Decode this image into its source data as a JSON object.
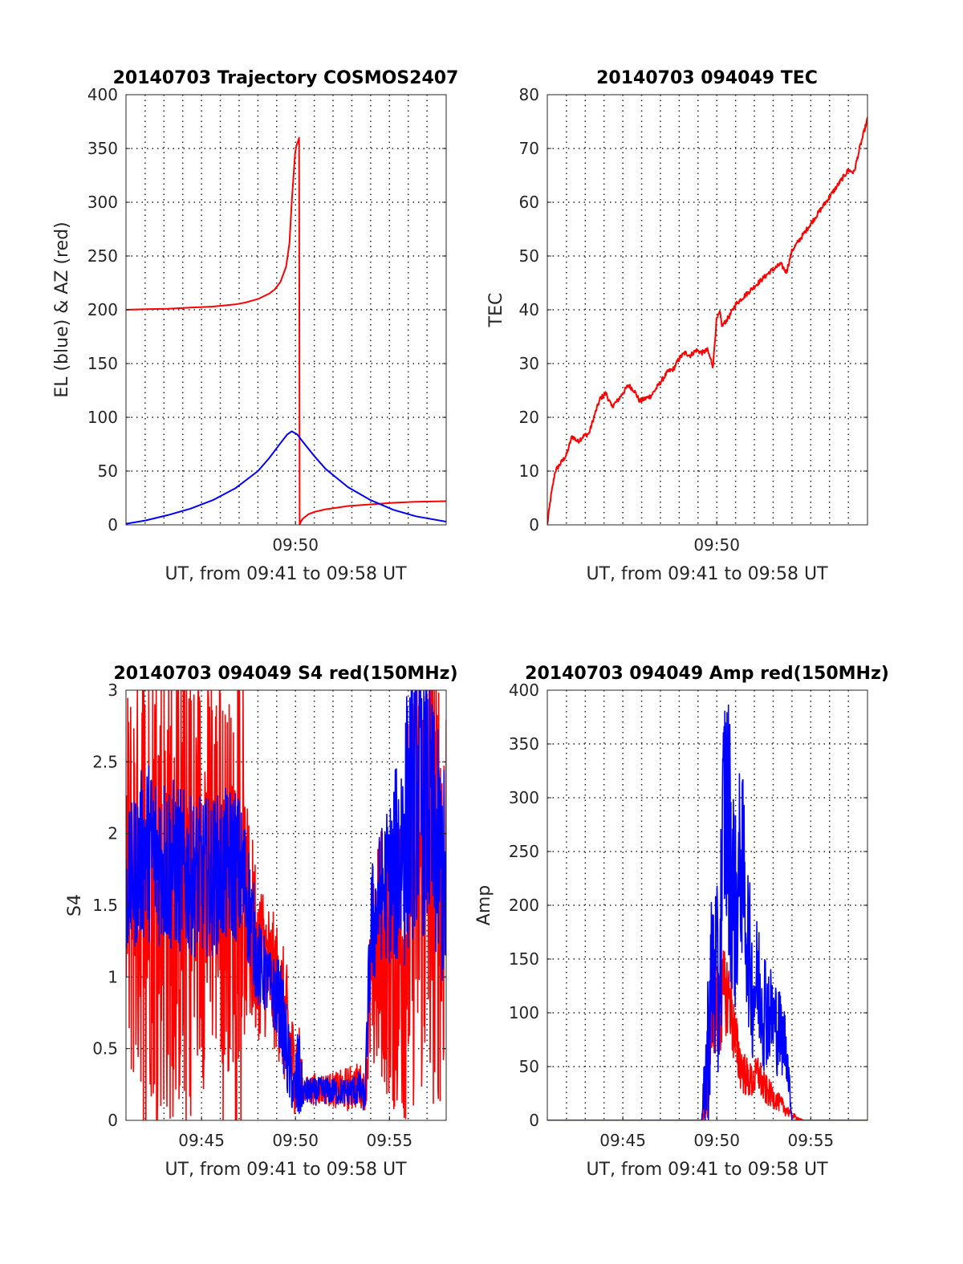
{
  "chart_data": [
    {
      "type": "line",
      "title": "20140703 Trajectory COSMOS2407",
      "xlabel": "UT, from 09:41 to 09:58 UT",
      "ylabel": "EL (blue) & AZ (red)",
      "xlim": [
        9.683,
        9.967
      ],
      "ylim": [
        0,
        400
      ],
      "yticks": [
        0,
        50,
        100,
        150,
        200,
        250,
        300,
        350,
        400
      ],
      "xtick_labels": [
        {
          "t": 9.8333,
          "label": "09:50"
        }
      ],
      "grid": true,
      "series": [
        {
          "color": "#ff0000",
          "curve": "az",
          "x": [
            9.683,
            9.7,
            9.72,
            9.74,
            9.76,
            9.78,
            9.79,
            9.8,
            9.81,
            9.815,
            9.82,
            9.825,
            9.828,
            9.83,
            9.832,
            9.833,
            9.834,
            9.835,
            9.836,
            9.8365,
            9.837,
            9.838,
            9.84,
            9.845,
            9.85,
            9.86,
            9.87,
            9.88,
            9.9,
            9.92,
            9.94,
            9.967
          ],
          "y": [
            200,
            200.5,
            201,
            202,
            203,
            205,
            207,
            210,
            215,
            219,
            226,
            240,
            262,
            300,
            330,
            345,
            352,
            355,
            358,
            360,
            0,
            3,
            6,
            10,
            12,
            14.5,
            16,
            17.5,
            19,
            20.5,
            21.5,
            22
          ]
        },
        {
          "color": "#0000ff",
          "curve": "el",
          "x": [
            9.683,
            9.7,
            9.72,
            9.74,
            9.76,
            9.78,
            9.8,
            9.81,
            9.82,
            9.826,
            9.83,
            9.835,
            9.84,
            9.85,
            9.86,
            9.88,
            9.9,
            9.92,
            9.94,
            9.967
          ],
          "y": [
            1,
            4,
            9,
            15,
            23,
            34,
            50,
            62,
            76,
            84,
            87,
            84,
            77,
            64,
            52,
            35,
            23,
            14,
            8,
            3
          ]
        }
      ]
    },
    {
      "type": "line",
      "title": "20140703 094049 TEC",
      "xlabel": "UT, from 09:41 to 09:58 UT",
      "ylabel": "TEC",
      "xlim": [
        9.683,
        9.967
      ],
      "ylim": [
        0,
        80
      ],
      "yticks": [
        0,
        10,
        20,
        30,
        40,
        50,
        60,
        70,
        80
      ],
      "xtick_labels": [
        {
          "t": 9.8333,
          "label": "09:50"
        }
      ],
      "grid": true,
      "series": [
        {
          "color": "#ff0000",
          "curve": "tec",
          "x": [
            9.683,
            9.686,
            9.69,
            9.695,
            9.7,
            9.705,
            9.71,
            9.715,
            9.72,
            9.725,
            9.73,
            9.735,
            9.74,
            9.745,
            9.75,
            9.755,
            9.76,
            9.765,
            9.77,
            9.775,
            9.78,
            9.785,
            9.79,
            9.795,
            9.8,
            9.805,
            9.81,
            9.815,
            9.82,
            9.825,
            9.83,
            9.833,
            9.836,
            9.838,
            9.84,
            9.845,
            9.85,
            9.86,
            9.87,
            9.88,
            9.89,
            9.895,
            9.897,
            9.9,
            9.91,
            9.92,
            9.93,
            9.94,
            9.945,
            9.95,
            9.955,
            9.96,
            9.967
          ],
          "y": [
            0,
            5,
            10,
            11.5,
            13,
            16.5,
            15.5,
            16.5,
            17,
            20.5,
            23.5,
            24.5,
            22,
            23,
            24.5,
            26,
            25,
            23,
            23.5,
            24,
            25.5,
            27,
            28.5,
            29,
            31,
            32,
            31.5,
            32.5,
            32,
            32.5,
            29.5,
            38,
            39.5,
            37,
            37.5,
            39,
            41,
            43,
            45,
            47,
            48.5,
            47,
            48.5,
            51,
            54,
            57,
            60,
            63,
            64.5,
            66,
            65.5,
            70,
            75.5
          ]
        }
      ]
    },
    {
      "type": "line",
      "title": "20140703 094049 S4 red(150MHz)",
      "xlabel": "UT, from 09:41 to 09:58 UT",
      "ylabel": "S4",
      "xlim": [
        9.683,
        9.967
      ],
      "ylim": [
        0,
        3
      ],
      "yticks": [
        0,
        0.5,
        1,
        1.5,
        2,
        2.5,
        3
      ],
      "xtick_labels": [
        {
          "t": 9.75,
          "label": "09:45"
        },
        {
          "t": 9.8333,
          "label": "09:50"
        },
        {
          "t": 9.9167,
          "label": "09:55"
        }
      ],
      "grid": true,
      "series": [
        {
          "color": "#ff0000",
          "curve": "s4red",
          "x": [
            9.683,
            9.7,
            9.72,
            9.74,
            9.76,
            9.78,
            9.79,
            9.8,
            9.81,
            9.82,
            9.827,
            9.832,
            9.836,
            9.84,
            9.85,
            9.86,
            9.87,
            9.88,
            9.89,
            9.895,
            9.9,
            9.91,
            9.92,
            9.93,
            9.94,
            9.95,
            9.967
          ],
          "y": [
            1.6,
            1.8,
            1.7,
            1.6,
            1.8,
            1.6,
            1.4,
            1.2,
            1.05,
            0.85,
            0.55,
            0.35,
            0.45,
            0.2,
            0.22,
            0.22,
            0.21,
            0.22,
            0.25,
            0.2,
            0.9,
            1.2,
            1.0,
            1.3,
            1.7,
            1.8,
            1.7
          ],
          "amp": [
            0.9,
            1.0,
            1.1,
            1.0,
            0.9,
            0.8,
            0.5,
            0.4,
            0.3,
            0.3,
            0.3,
            0.2,
            0.2,
            0.06,
            0.07,
            0.07,
            0.08,
            0.1,
            0.1,
            0.08,
            0.4,
            0.6,
            0.6,
            0.9,
            1.0,
            1.1,
            1.0
          ]
        },
        {
          "color": "#0000ff",
          "curve": "s4blue",
          "x": [
            9.683,
            9.7,
            9.72,
            9.74,
            9.76,
            9.78,
            9.79,
            9.8,
            9.81,
            9.82,
            9.827,
            9.832,
            9.836,
            9.84,
            9.85,
            9.86,
            9.87,
            9.88,
            9.89,
            9.895,
            9.9,
            9.91,
            9.92,
            9.93,
            9.94,
            9.95,
            9.967
          ],
          "y": [
            1.6,
            1.9,
            1.8,
            1.7,
            1.7,
            1.8,
            1.6,
            1.1,
            0.95,
            0.8,
            0.4,
            0.2,
            0.3,
            0.2,
            0.2,
            0.21,
            0.2,
            0.2,
            0.22,
            0.15,
            1.3,
            1.6,
            1.7,
            2.0,
            2.3,
            2.2,
            1.6
          ],
          "amp": [
            0.3,
            0.4,
            0.4,
            0.35,
            0.35,
            0.35,
            0.3,
            0.2,
            0.15,
            0.2,
            0.2,
            0.1,
            0.25,
            0.06,
            0.06,
            0.06,
            0.06,
            0.06,
            0.08,
            0.06,
            0.3,
            0.3,
            0.4,
            0.6,
            0.6,
            0.6,
            0.5
          ]
        }
      ]
    },
    {
      "type": "line",
      "title": "20140703 094049 Amp red(150MHz)",
      "xlabel": "UT, from 09:41 to 09:58 UT",
      "ylabel": "Amp",
      "xlim": [
        9.683,
        9.967
      ],
      "ylim": [
        0,
        400
      ],
      "yticks": [
        0,
        50,
        100,
        150,
        200,
        250,
        300,
        350,
        400
      ],
      "xtick_labels": [
        {
          "t": 9.75,
          "label": "09:45"
        },
        {
          "t": 9.8333,
          "label": "09:50"
        },
        {
          "t": 9.9167,
          "label": "09:55"
        }
      ],
      "grid": true,
      "series": [
        {
          "color": "#ff0000",
          "curve": "ampred",
          "x": [
            9.683,
            9.8,
            9.82,
            9.825,
            9.83,
            9.835,
            9.84,
            9.845,
            9.85,
            9.855,
            9.86,
            9.865,
            9.87,
            9.875,
            9.88,
            9.885,
            9.89,
            9.895,
            9.9,
            9.905,
            9.91,
            9.967
          ],
          "y": [
            0,
            0,
            0,
            30,
            110,
            100,
            120,
            115,
            70,
            50,
            40,
            35,
            45,
            30,
            25,
            20,
            15,
            10,
            5,
            2,
            0,
            0
          ],
          "amp": [
            0,
            0,
            0,
            20,
            30,
            30,
            25,
            25,
            20,
            15,
            12,
            10,
            12,
            10,
            8,
            6,
            5,
            4,
            2,
            1,
            0,
            0
          ]
        },
        {
          "color": "#0000ff",
          "curve": "ampblue",
          "x": [
            9.683,
            9.8,
            9.82,
            9.825,
            9.83,
            9.835,
            9.84,
            9.845,
            9.85,
            9.855,
            9.86,
            9.865,
            9.87,
            9.875,
            9.88,
            9.885,
            9.89,
            9.895,
            9.9,
            9.967
          ],
          "y": [
            0,
            0,
            0,
            60,
            150,
            110,
            300,
            260,
            190,
            250,
            180,
            120,
            130,
            110,
            100,
            90,
            80,
            70,
            0,
            0
          ],
          "amp": [
            0,
            0,
            0,
            50,
            60,
            60,
            80,
            80,
            60,
            60,
            50,
            40,
            40,
            40,
            30,
            30,
            25,
            20,
            0,
            0
          ]
        }
      ]
    }
  ]
}
